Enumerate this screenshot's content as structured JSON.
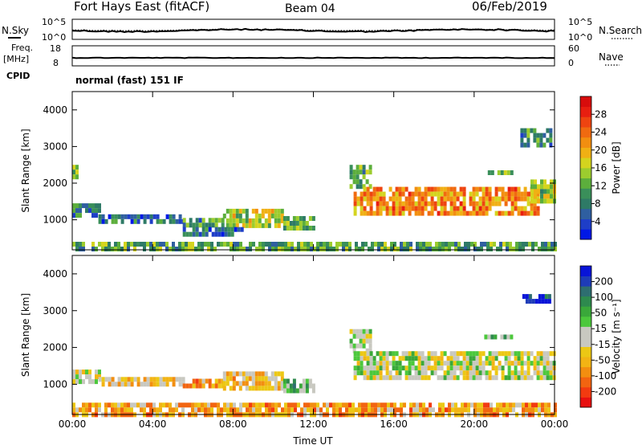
{
  "header": {
    "station": "Fort Hays East (fitACF)",
    "beam": "Beam 04",
    "date": "06/Feb/2019"
  },
  "panels": {
    "sky": {
      "left_label": "N.Sky",
      "right_label": "N.Search",
      "left_ticks": [
        "10^5",
        "10^0"
      ],
      "right_ticks": [
        "10^5",
        "10^0"
      ]
    },
    "freq": {
      "left_label_1": "Freq.",
      "left_label_2": "[MHz]",
      "right_label": "Nave",
      "left_ticks": [
        "18",
        "8"
      ],
      "right_ticks": [
        "60",
        "0"
      ]
    },
    "cpid": {
      "label": "CPID",
      "text": "normal (fast) 151 IF"
    }
  },
  "chart_data": [
    {
      "type": "heatmap",
      "name": "power",
      "ylabel": "Slant Range [km]",
      "ylim": [
        180,
        4500
      ],
      "yticks": [
        1000,
        2000,
        3000,
        4000
      ],
      "xlim": [
        0,
        24
      ],
      "xticks": [
        "00:00",
        "04:00",
        "08:00",
        "12:00",
        "16:00",
        "20:00",
        "00:00"
      ],
      "colorbar": {
        "label": "Power [dB]",
        "range": [
          0,
          30
        ],
        "ticks": [
          "4",
          "8",
          "12",
          "16",
          "20",
          "24",
          "28"
        ],
        "colors": [
          "#0018e6",
          "#1e3ec8",
          "#2f5fa0",
          "#2e7a66",
          "#3a8f5a",
          "#5cae3c",
          "#9ccc2e",
          "#d4d41e",
          "#f0b014",
          "#f28e10",
          "#f06a10",
          "#ee4410",
          "#e81e10",
          "#d80c0c"
        ]
      },
      "regions": [
        {
          "t0": 0.0,
          "t1": 1.3,
          "r0": 1080,
          "r1": 1450,
          "level": 0.25
        },
        {
          "t0": 0.0,
          "t1": 0.3,
          "r0": 2150,
          "r1": 2500,
          "level": 0.4
        },
        {
          "t0": 1.3,
          "t1": 5.5,
          "r0": 900,
          "r1": 1150,
          "level": 0.22
        },
        {
          "t0": 5.5,
          "t1": 7.5,
          "r0": 820,
          "r1": 1050,
          "level": 0.3
        },
        {
          "t0": 7.5,
          "t1": 10.5,
          "r0": 850,
          "r1": 1300,
          "level": 0.5
        },
        {
          "t0": 10.5,
          "t1": 12.0,
          "r0": 800,
          "r1": 1100,
          "level": 0.35
        },
        {
          "t0": 5.5,
          "t1": 8.5,
          "r0": 600,
          "r1": 800,
          "level": 0.2
        },
        {
          "t0": 13.8,
          "t1": 14.8,
          "r0": 1900,
          "r1": 2500,
          "level": 0.38
        },
        {
          "t0": 14.0,
          "t1": 23.2,
          "r0": 1200,
          "r1": 1900,
          "level": 0.7
        },
        {
          "t0": 22.8,
          "t1": 24.0,
          "r0": 1500,
          "r1": 2100,
          "level": 0.45
        },
        {
          "t0": 20.2,
          "t1": 21.8,
          "r0": 2250,
          "r1": 2350,
          "level": 0.4
        },
        {
          "t0": 22.3,
          "t1": 23.8,
          "r0": 3000,
          "r1": 3500,
          "level": 0.3
        },
        {
          "t0": 0.0,
          "t1": 24.0,
          "r0": 180,
          "r1": 400,
          "level": 0.35
        }
      ]
    },
    {
      "type": "heatmap",
      "name": "velocity",
      "ylabel": "Slant Range [km]",
      "ylim": [
        180,
        4500
      ],
      "yticks": [
        1000,
        2000,
        3000,
        4000
      ],
      "xlim": [
        0,
        24
      ],
      "xticks": [
        "00:00",
        "04:00",
        "08:00",
        "12:00",
        "16:00",
        "20:00",
        "00:00"
      ],
      "xlabel": "Time UT",
      "colorbar": {
        "label": "Velocity [m s⁻¹]",
        "range": [
          -250,
          250
        ],
        "ticks": [
          "200",
          "100",
          "50",
          "15",
          "-15",
          "-50",
          "-100",
          "-200"
        ],
        "colors": [
          "#e81010",
          "#f23a10",
          "#f26410",
          "#f28e10",
          "#f2b414",
          "#ecc814",
          "#c8c8c0",
          "#c8c8c0",
          "#4cc83c",
          "#3aa83a",
          "#2e8a4e",
          "#2e6e70",
          "#1e3cb8",
          "#0814d8"
        ]
      },
      "regions": [
        {
          "t0": 0.0,
          "t1": 1.3,
          "r0": 1050,
          "r1": 1400,
          "level": 0.47
        },
        {
          "t0": 1.3,
          "t1": 5.5,
          "r0": 950,
          "r1": 1200,
          "level": 0.4
        },
        {
          "t0": 5.5,
          "t1": 7.5,
          "r0": 900,
          "r1": 1150,
          "level": 0.3
        },
        {
          "t0": 7.5,
          "t1": 10.5,
          "r0": 900,
          "r1": 1350,
          "level": 0.38
        },
        {
          "t0": 10.5,
          "t1": 12.0,
          "r0": 800,
          "r1": 1150,
          "level": 0.62
        },
        {
          "t0": 13.8,
          "t1": 14.8,
          "r0": 1900,
          "r1": 2500,
          "level": 0.5
        },
        {
          "t0": 14.0,
          "t1": 24.0,
          "r0": 1200,
          "r1": 1900,
          "level": 0.5
        },
        {
          "t0": 20.5,
          "t1": 21.8,
          "r0": 2250,
          "r1": 2350,
          "level": 0.63
        },
        {
          "t0": 22.4,
          "t1": 23.8,
          "r0": 3250,
          "r1": 3450,
          "level": 0.95
        },
        {
          "t0": 0.0,
          "t1": 24.0,
          "r0": 180,
          "r1": 500,
          "level": 0.3
        }
      ]
    }
  ]
}
